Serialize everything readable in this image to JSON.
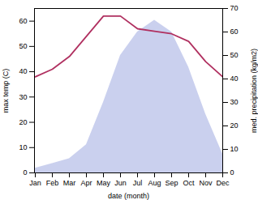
{
  "chart_data": {
    "type": "line",
    "xlabel": "date (month)",
    "ylabel": "max temp (C)",
    "y2label": "med. precipitation (kg/m2)",
    "categories": [
      "Jan",
      "Feb",
      "Mar",
      "Apr",
      "May",
      "Jun",
      "Jul",
      "Aug",
      "Sep",
      "Oct",
      "Nov",
      "Dec"
    ],
    "series": [
      {
        "type": "area",
        "axis": "y2",
        "color": "#b8c0e8",
        "values": [
          2,
          4,
          6,
          12,
          30,
          50,
          60,
          65,
          60,
          45,
          25,
          8
        ]
      },
      {
        "type": "line",
        "color": "#b03060",
        "values": [
          38,
          41,
          46,
          54,
          62,
          62,
          57,
          56,
          55,
          52,
          44,
          38
        ]
      }
    ],
    "ylim": [
      0,
      65
    ],
    "yticks": [
      0,
      10,
      20,
      30,
      40,
      50,
      60
    ],
    "y2lim": [
      0,
      70
    ],
    "y2ticks": [
      0,
      10,
      20,
      30,
      40,
      50,
      60,
      70
    ],
    "grid": false
  }
}
